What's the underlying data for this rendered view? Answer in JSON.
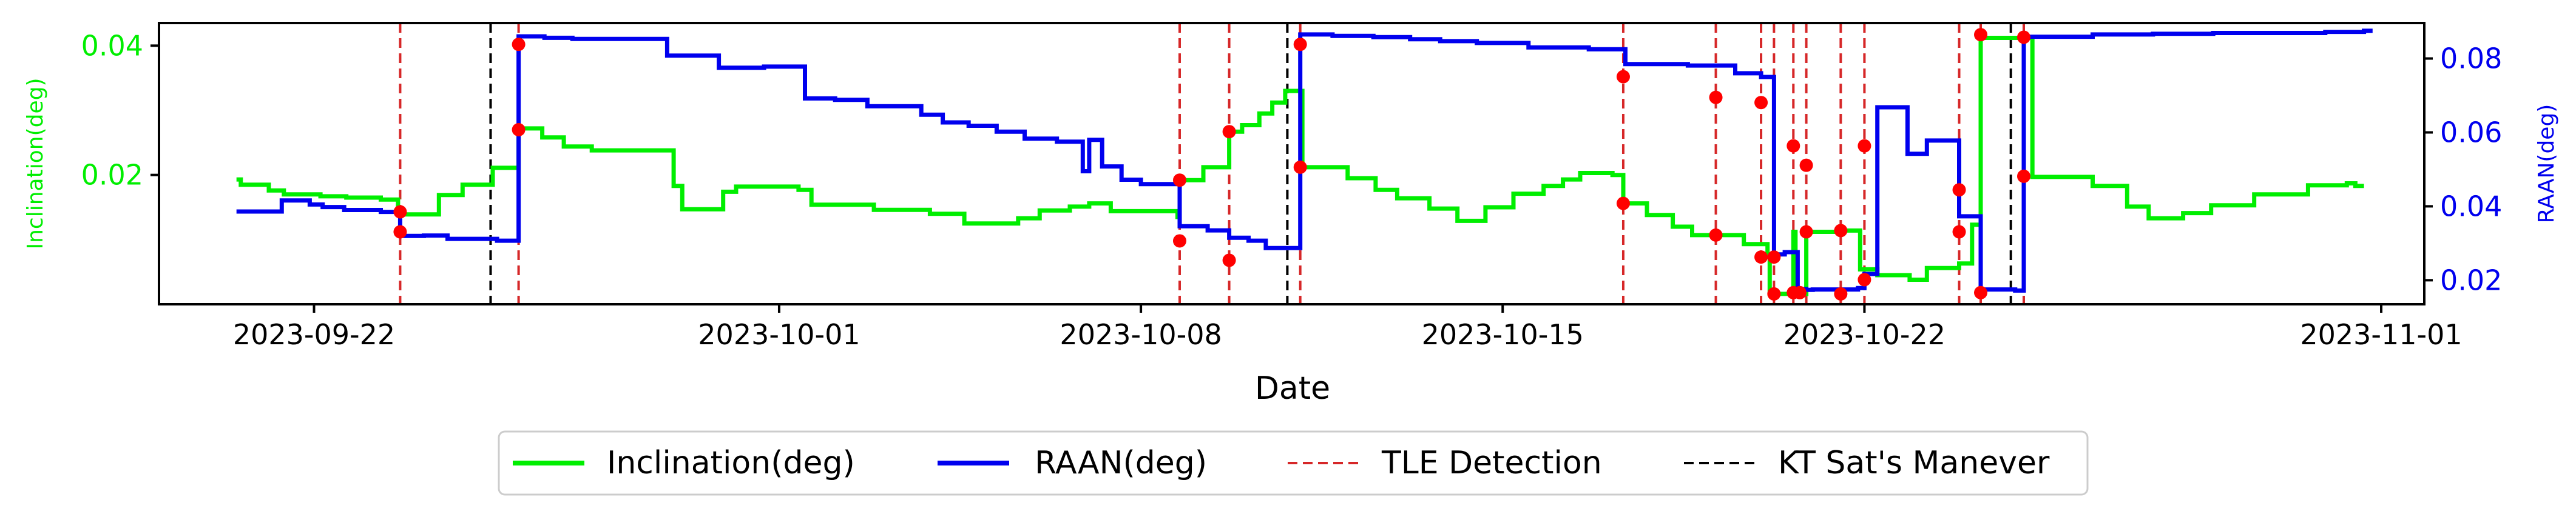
{
  "chart_data": {
    "type": "line",
    "xlabel": "Date",
    "ylabel_left": "Inclination(deg)",
    "ylabel_right": "RAAN(deg)",
    "x_ticks": [
      "2023-09-22",
      "2023-10-01",
      "2023-10-08",
      "2023-10-15",
      "2023-10-22",
      "2023-11-01"
    ],
    "xlim": [
      "2023-09-19",
      "2023-11-01 20:00"
    ],
    "ylim_left": [
      0.0,
      0.0435
    ],
    "ylim_right": [
      0.0135,
      0.0896
    ],
    "y_ticks_left": [
      "0.02",
      "0.04"
    ],
    "y_ticks_right": [
      "0.02",
      "0.04",
      "0.06",
      "0.08"
    ],
    "colors": {
      "inclination": "#00ee00",
      "raan": "#0000ee",
      "tle_detection": "#d62728",
      "maneuver": "#000000",
      "marker": "#ff0000",
      "left_axis": "#00ee00",
      "right_axis": "#0000ee"
    },
    "legend_placement": "below",
    "legend": [
      {
        "label": "Inclination(deg)",
        "style": "inclination"
      },
      {
        "label": "RAAN(deg)",
        "style": "raan"
      },
      {
        "label": "TLE Detection",
        "style": "tle"
      },
      {
        "label": "KT Sat's Manever",
        "style": "maneuver"
      }
    ],
    "series": [
      {
        "name": "Inclination(deg)",
        "axis": "left",
        "step": true,
        "points": [
          [
            "2023-09-20 12:00",
            0.0193
          ],
          [
            "2023-09-20 14:00",
            0.0185
          ],
          [
            "2023-09-21 03:00",
            0.0176
          ],
          [
            "2023-09-21 10:00",
            0.017
          ],
          [
            "2023-09-22 03:00",
            0.0167
          ],
          [
            "2023-09-22 15:00",
            0.0165
          ],
          [
            "2023-09-23 07:00",
            0.0162
          ],
          [
            "2023-09-23 15:00",
            0.0139
          ],
          [
            "2023-09-24 10:00",
            0.0169
          ],
          [
            "2023-09-24 21:00",
            0.0185
          ],
          [
            "2023-09-25 11:00",
            0.0211
          ],
          [
            "2023-09-25 23:00",
            0.0272
          ],
          [
            "2023-09-26 10:00",
            0.0258
          ],
          [
            "2023-09-26 20:00",
            0.0244
          ],
          [
            "2023-09-27 09:00",
            0.0238
          ],
          [
            "2023-09-28 23:00",
            0.0183
          ],
          [
            "2023-09-29 03:00",
            0.0147
          ],
          [
            "2023-09-29 22:00",
            0.0174
          ],
          [
            "2023-09-30 04:00",
            0.0182
          ],
          [
            "2023-10-01 09:00",
            0.0177
          ],
          [
            "2023-10-01 15:00",
            0.0154
          ],
          [
            "2023-10-02 20:00",
            0.0146
          ],
          [
            "2023-10-03 22:00",
            0.014
          ],
          [
            "2023-10-04 14:00",
            0.0125
          ],
          [
            "2023-10-05 15:00",
            0.0133
          ],
          [
            "2023-10-06 01:00",
            0.0145
          ],
          [
            "2023-10-06 15:00",
            0.0151
          ],
          [
            "2023-10-07 00:00",
            0.0156
          ],
          [
            "2023-10-07 10:00",
            0.0144
          ],
          [
            "2023-10-08 17:00",
            0.0135
          ],
          [
            "2023-10-08 18:00",
            0.0192
          ],
          [
            "2023-10-09 05:00",
            0.0212
          ],
          [
            "2023-10-09 17:00",
            0.0267
          ],
          [
            "2023-10-09 23:00",
            0.0277
          ],
          [
            "2023-10-10 07:00",
            0.0295
          ],
          [
            "2023-10-10 13:00",
            0.0312
          ],
          [
            "2023-10-10 19:00",
            0.033
          ],
          [
            "2023-10-11 03:00",
            0.0212
          ],
          [
            "2023-10-12 00:00",
            0.0195
          ],
          [
            "2023-10-12 13:00",
            0.0177
          ],
          [
            "2023-10-12 23:00",
            0.0164
          ],
          [
            "2023-10-13 14:00",
            0.0148
          ],
          [
            "2023-10-14 03:00",
            0.0129
          ],
          [
            "2023-10-14 16:00",
            0.015
          ],
          [
            "2023-10-15 05:00",
            0.0171
          ],
          [
            "2023-10-15 19:00",
            0.0183
          ],
          [
            "2023-10-16 04:00",
            0.0193
          ],
          [
            "2023-10-16 12:00",
            0.0203
          ],
          [
            "2023-10-17 03:00",
            0.02
          ],
          [
            "2023-10-17 08:00",
            0.0156
          ],
          [
            "2023-10-17 19:00",
            0.0138
          ],
          [
            "2023-10-18 07:00",
            0.012
          ],
          [
            "2023-10-18 16:00",
            0.0107
          ],
          [
            "2023-10-19 04:00",
            0.0107
          ],
          [
            "2023-10-19 16:00",
            0.0093
          ],
          [
            "2023-10-20 03:00",
            0.0074
          ],
          [
            "2023-10-20 04:00",
            0.0016
          ],
          [
            "2023-10-20 15:00",
            0.0112
          ],
          [
            "2023-10-20 16:00",
            0.0016
          ],
          [
            "2023-10-20 21:00",
            0.0112
          ],
          [
            "2023-10-21 13:00",
            0.0114
          ],
          [
            "2023-10-21 22:00",
            0.0054
          ],
          [
            "2023-10-22 06:00",
            0.0045
          ],
          [
            "2023-10-22 21:00",
            0.0038
          ],
          [
            "2023-10-23 05:00",
            0.0056
          ],
          [
            "2023-10-23 20:00",
            0.0063
          ],
          [
            "2023-10-24 02:00",
            0.0123
          ],
          [
            "2023-10-24 06:00",
            0.0412
          ],
          [
            "2023-10-25 00:00",
            0.0412
          ],
          [
            "2023-10-25 06:00",
            0.0197
          ],
          [
            "2023-10-26 10:00",
            0.0183
          ],
          [
            "2023-10-27 02:00",
            0.0151
          ],
          [
            "2023-10-27 12:00",
            0.0133
          ],
          [
            "2023-10-28 04:00",
            0.0141
          ],
          [
            "2023-10-28 17:00",
            0.0153
          ],
          [
            "2023-10-29 13:00",
            0.017
          ],
          [
            "2023-10-30 14:00",
            0.0184
          ],
          [
            "2023-10-31 08:00",
            0.0187
          ],
          [
            "2023-10-31 12:00",
            0.0183
          ],
          [
            "2023-10-31 16:00",
            0.0183
          ]
        ]
      },
      {
        "name": "RAAN(deg)",
        "axis": "right",
        "step": true,
        "points": [
          [
            "2023-09-20 12:00",
            0.0386
          ],
          [
            "2023-09-21 09:00",
            0.0416
          ],
          [
            "2023-09-21 22:00",
            0.0405
          ],
          [
            "2023-09-22 04:00",
            0.0398
          ],
          [
            "2023-09-22 14:00",
            0.039
          ],
          [
            "2023-09-23 07:00",
            0.0385
          ],
          [
            "2023-09-23 16:00",
            0.032
          ],
          [
            "2023-09-24 03:00",
            0.0321
          ],
          [
            "2023-09-24 14:00",
            0.0312
          ],
          [
            "2023-09-25 13:00",
            0.0307
          ],
          [
            "2023-09-25 23:00",
            0.086
          ],
          [
            "2023-09-26 11:00",
            0.0856
          ],
          [
            "2023-09-27 00:00",
            0.0853
          ],
          [
            "2023-09-28 20:00",
            0.0808
          ],
          [
            "2023-09-29 20:00",
            0.0775
          ],
          [
            "2023-09-30 17:00",
            0.0778
          ],
          [
            "2023-10-01 12:00",
            0.0692
          ],
          [
            "2023-10-02 02:00",
            0.0688
          ],
          [
            "2023-10-02 17:00",
            0.0671
          ],
          [
            "2023-10-03 18:00",
            0.0648
          ],
          [
            "2023-10-04 04:00",
            0.0627
          ],
          [
            "2023-10-04 16:00",
            0.0618
          ],
          [
            "2023-10-05 05:00",
            0.0602
          ],
          [
            "2023-10-05 18:00",
            0.0583
          ],
          [
            "2023-10-06 09:00",
            0.0575
          ],
          [
            "2023-10-06 21:00",
            0.0495
          ],
          [
            "2023-10-07 00:00",
            0.058
          ],
          [
            "2023-10-07 06:00",
            0.0508
          ],
          [
            "2023-10-07 15:00",
            0.0472
          ],
          [
            "2023-10-08 00:00",
            0.046
          ],
          [
            "2023-10-08 18:00",
            0.0346
          ],
          [
            "2023-10-09 07:00",
            0.0335
          ],
          [
            "2023-10-09 17:00",
            0.0315
          ],
          [
            "2023-10-10 02:00",
            0.0307
          ],
          [
            "2023-10-10 10:00",
            0.0287
          ],
          [
            "2023-10-11 02:00",
            0.0865
          ],
          [
            "2023-10-11 17:00",
            0.0861
          ],
          [
            "2023-10-12 12:00",
            0.0858
          ],
          [
            "2023-10-13 05:00",
            0.0852
          ],
          [
            "2023-10-13 19:00",
            0.0847
          ],
          [
            "2023-10-14 12:00",
            0.0842
          ],
          [
            "2023-10-15 12:00",
            0.083
          ],
          [
            "2023-10-16 16:00",
            0.0825
          ],
          [
            "2023-10-17 09:00",
            0.0785
          ],
          [
            "2023-10-18 14:00",
            0.0781
          ],
          [
            "2023-10-19 12:00",
            0.076
          ],
          [
            "2023-10-20 00:00",
            0.075
          ],
          [
            "2023-10-20 06:00",
            0.027
          ],
          [
            "2023-10-20 11:00",
            0.0276
          ],
          [
            "2023-10-20 17:00",
            0.0176
          ],
          [
            "2023-10-20 21:00",
            0.0174
          ],
          [
            "2023-10-21 00:00",
            0.0175
          ],
          [
            "2023-10-21 21:00",
            0.0179
          ],
          [
            "2023-10-22 00:00",
            0.0217
          ],
          [
            "2023-10-22 06:00",
            0.0668
          ],
          [
            "2023-10-22 20:00",
            0.0542
          ],
          [
            "2023-10-23 00:00",
            0.0542
          ],
          [
            "2023-10-23 05:00",
            0.0578
          ],
          [
            "2023-10-23 20:00",
            0.0373
          ],
          [
            "2023-10-24 06:00",
            0.0175
          ],
          [
            "2023-10-24 22:00",
            0.0172
          ],
          [
            "2023-10-25 02:00",
            0.0859
          ],
          [
            "2023-10-26 10:00",
            0.0865
          ],
          [
            "2023-10-27 14:00",
            0.0867
          ],
          [
            "2023-10-28 18:00",
            0.0869
          ],
          [
            "2023-10-30 22:00",
            0.0872
          ],
          [
            "2023-10-31 10:00",
            0.0872
          ],
          [
            "2023-10-31 16:00",
            0.0875
          ],
          [
            "2023-10-31 20:00",
            0.0875
          ]
        ]
      }
    ],
    "tle_detections": [
      "2023-09-23 16:00",
      "2023-09-25 23:00",
      "2023-10-08 18:00",
      "2023-10-09 17:00",
      "2023-10-11 02:00",
      "2023-10-17 08:00",
      "2023-10-19 03:00",
      "2023-10-20 00:00",
      "2023-10-20 06:00",
      "2023-10-20 15:00",
      "2023-10-20 21:00",
      "2023-10-21 13:00",
      "2023-10-22 00:00",
      "2023-10-23 20:00",
      "2023-10-24 06:00",
      "2023-10-25 02:00"
    ],
    "maneuvers": [
      "2023-09-25 10:00",
      "2023-10-10 20:00",
      "2023-10-24 20:00"
    ],
    "markers": [
      {
        "x": "2023-09-23 16:00",
        "axis": "right",
        "y": 0.0385
      },
      {
        "x": "2023-09-23 16:00",
        "axis": "left",
        "y": 0.0112
      },
      {
        "x": "2023-09-25 23:00",
        "axis": "left",
        "y": 0.0402
      },
      {
        "x": "2023-09-25 23:00",
        "axis": "left",
        "y": 0.027
      },
      {
        "x": "2023-10-08 18:00",
        "axis": "left",
        "y": 0.0192
      },
      {
        "x": "2023-10-08 18:00",
        "axis": "left",
        "y": 0.0098
      },
      {
        "x": "2023-10-09 17:00",
        "axis": "left",
        "y": 0.0267
      },
      {
        "x": "2023-10-09 17:00",
        "axis": "left",
        "y": 0.0068
      },
      {
        "x": "2023-10-11 02:00",
        "axis": "left",
        "y": 0.0402
      },
      {
        "x": "2023-10-11 02:00",
        "axis": "left",
        "y": 0.0212
      },
      {
        "x": "2023-10-17 08:00",
        "axis": "left",
        "y": 0.0352
      },
      {
        "x": "2023-10-17 08:00",
        "axis": "left",
        "y": 0.0156
      },
      {
        "x": "2023-10-19 03:00",
        "axis": "left",
        "y": 0.032
      },
      {
        "x": "2023-10-19 03:00",
        "axis": "left",
        "y": 0.0107
      },
      {
        "x": "2023-10-20 00:00",
        "axis": "left",
        "y": 0.0312
      },
      {
        "x": "2023-10-20 00:00",
        "axis": "left",
        "y": 0.0073
      },
      {
        "x": "2023-10-20 06:00",
        "axis": "left",
        "y": 0.0016
      },
      {
        "x": "2023-10-20 06:00",
        "axis": "left",
        "y": 0.0073
      },
      {
        "x": "2023-10-20 15:00",
        "axis": "left",
        "y": 0.0245
      },
      {
        "x": "2023-10-20 15:00",
        "axis": "left",
        "y": 0.0018
      },
      {
        "x": "2023-10-20 18:00",
        "axis": "left",
        "y": 0.0018
      },
      {
        "x": "2023-10-20 21:00",
        "axis": "left",
        "y": 0.0112
      },
      {
        "x": "2023-10-20 21:00",
        "axis": "left",
        "y": 0.0215
      },
      {
        "x": "2023-10-21 13:00",
        "axis": "left",
        "y": 0.0114
      },
      {
        "x": "2023-10-21 13:00",
        "axis": "left",
        "y": 0.0016
      },
      {
        "x": "2023-10-22 00:00",
        "axis": "left",
        "y": 0.0245
      },
      {
        "x": "2023-10-22 00:00",
        "axis": "left",
        "y": 0.0038
      },
      {
        "x": "2023-10-23 20:00",
        "axis": "left",
        "y": 0.0177
      },
      {
        "x": "2023-10-23 20:00",
        "axis": "left",
        "y": 0.0112
      },
      {
        "x": "2023-10-24 06:00",
        "axis": "left",
        "y": 0.0417
      },
      {
        "x": "2023-10-24 06:00",
        "axis": "left",
        "y": 0.0018
      },
      {
        "x": "2023-10-25 02:00",
        "axis": "left",
        "y": 0.0413
      },
      {
        "x": "2023-10-25 02:00",
        "axis": "left",
        "y": 0.0198
      }
    ],
    "grid": false
  }
}
